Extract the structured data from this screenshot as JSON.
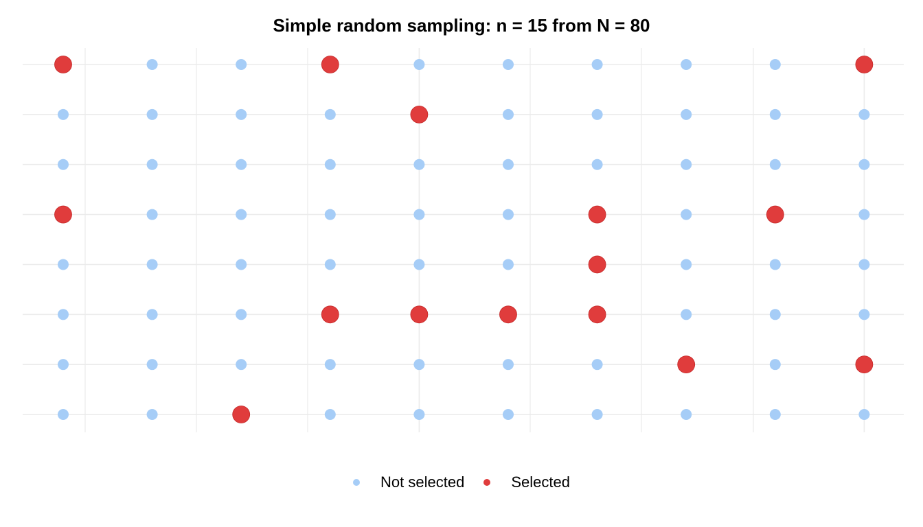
{
  "chart_data": {
    "type": "scatter",
    "title": "Simple random sampling: n = 15 from N = 80",
    "xlabel": "",
    "ylabel": "",
    "columns": 10,
    "rows": 8,
    "grid": true,
    "axis_tick_labels": false,
    "legend_placement": "bottom",
    "series": [
      {
        "name": "Not selected",
        "color": "#A6CDF7",
        "marker": "small-circle"
      },
      {
        "name": "Selected",
        "color": "#E03C3C",
        "marker": "large-circle",
        "points": [
          {
            "x": 1,
            "y": 8
          },
          {
            "x": 4,
            "y": 8
          },
          {
            "x": 10,
            "y": 8
          },
          {
            "x": 5,
            "y": 7
          },
          {
            "x": 1,
            "y": 5
          },
          {
            "x": 7,
            "y": 5
          },
          {
            "x": 9,
            "y": 5
          },
          {
            "x": 7,
            "y": 4
          },
          {
            "x": 4,
            "y": 3
          },
          {
            "x": 5,
            "y": 3
          },
          {
            "x": 6,
            "y": 3
          },
          {
            "x": 7,
            "y": 3
          },
          {
            "x": 8,
            "y": 2
          },
          {
            "x": 10,
            "y": 2
          },
          {
            "x": 3,
            "y": 1
          }
        ]
      }
    ]
  },
  "legend": {
    "not_selected_label": "Not selected",
    "selected_label": "Selected"
  }
}
